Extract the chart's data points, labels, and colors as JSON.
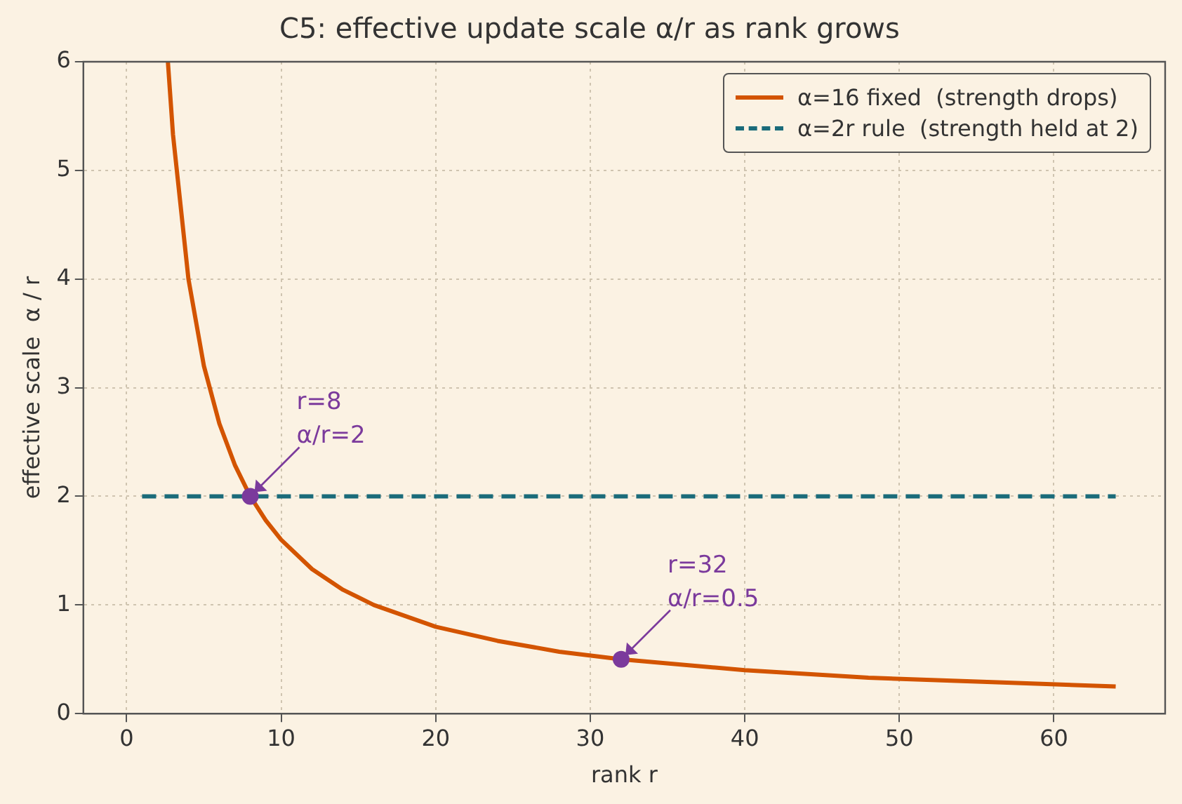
{
  "chart_data": {
    "type": "line",
    "title": "C5: effective update scale α/r as rank grows",
    "xlabel": "rank r",
    "ylabel": "effective scale  α / r",
    "xlim": [
      -2.8,
      67.2
    ],
    "xticks": [
      0,
      10,
      20,
      30,
      40,
      50,
      60
    ],
    "ylim": [
      0,
      6
    ],
    "yticks": [
      0,
      1,
      2,
      3,
      4,
      5,
      6
    ],
    "grid": true,
    "legend": "top right",
    "series": [
      {
        "name": "α=16 fixed  (strength drops)",
        "color": "#d35400",
        "line_style": "solid",
        "x": [
          2.67,
          3,
          4,
          5,
          6,
          7,
          8,
          9,
          10,
          12,
          14,
          16,
          20,
          24,
          28,
          32,
          40,
          48,
          56,
          64
        ],
        "values": [
          6,
          5.33,
          4,
          3.2,
          2.67,
          2.29,
          2,
          1.78,
          1.6,
          1.33,
          1.14,
          1,
          0.8,
          0.67,
          0.57,
          0.5,
          0.4,
          0.33,
          0.29,
          0.25
        ]
      },
      {
        "name": "α=2r rule  (strength held at 2)",
        "color": "#1a6b7a",
        "line_style": "dashed",
        "x": [
          1,
          64
        ],
        "values": [
          2,
          2
        ]
      },
      {
        "type": "scatter",
        "color": "#7b3a9c",
        "marker": "circle",
        "x": [
          8,
          32
        ],
        "values": [
          2,
          0.5
        ]
      }
    ],
    "annotations": [
      {
        "text": "r=8\nα/r=2",
        "x": 8,
        "y": 2
      },
      {
        "text": "r=32\nα/r=0.5",
        "x": 32,
        "y": 0.5
      }
    ]
  }
}
